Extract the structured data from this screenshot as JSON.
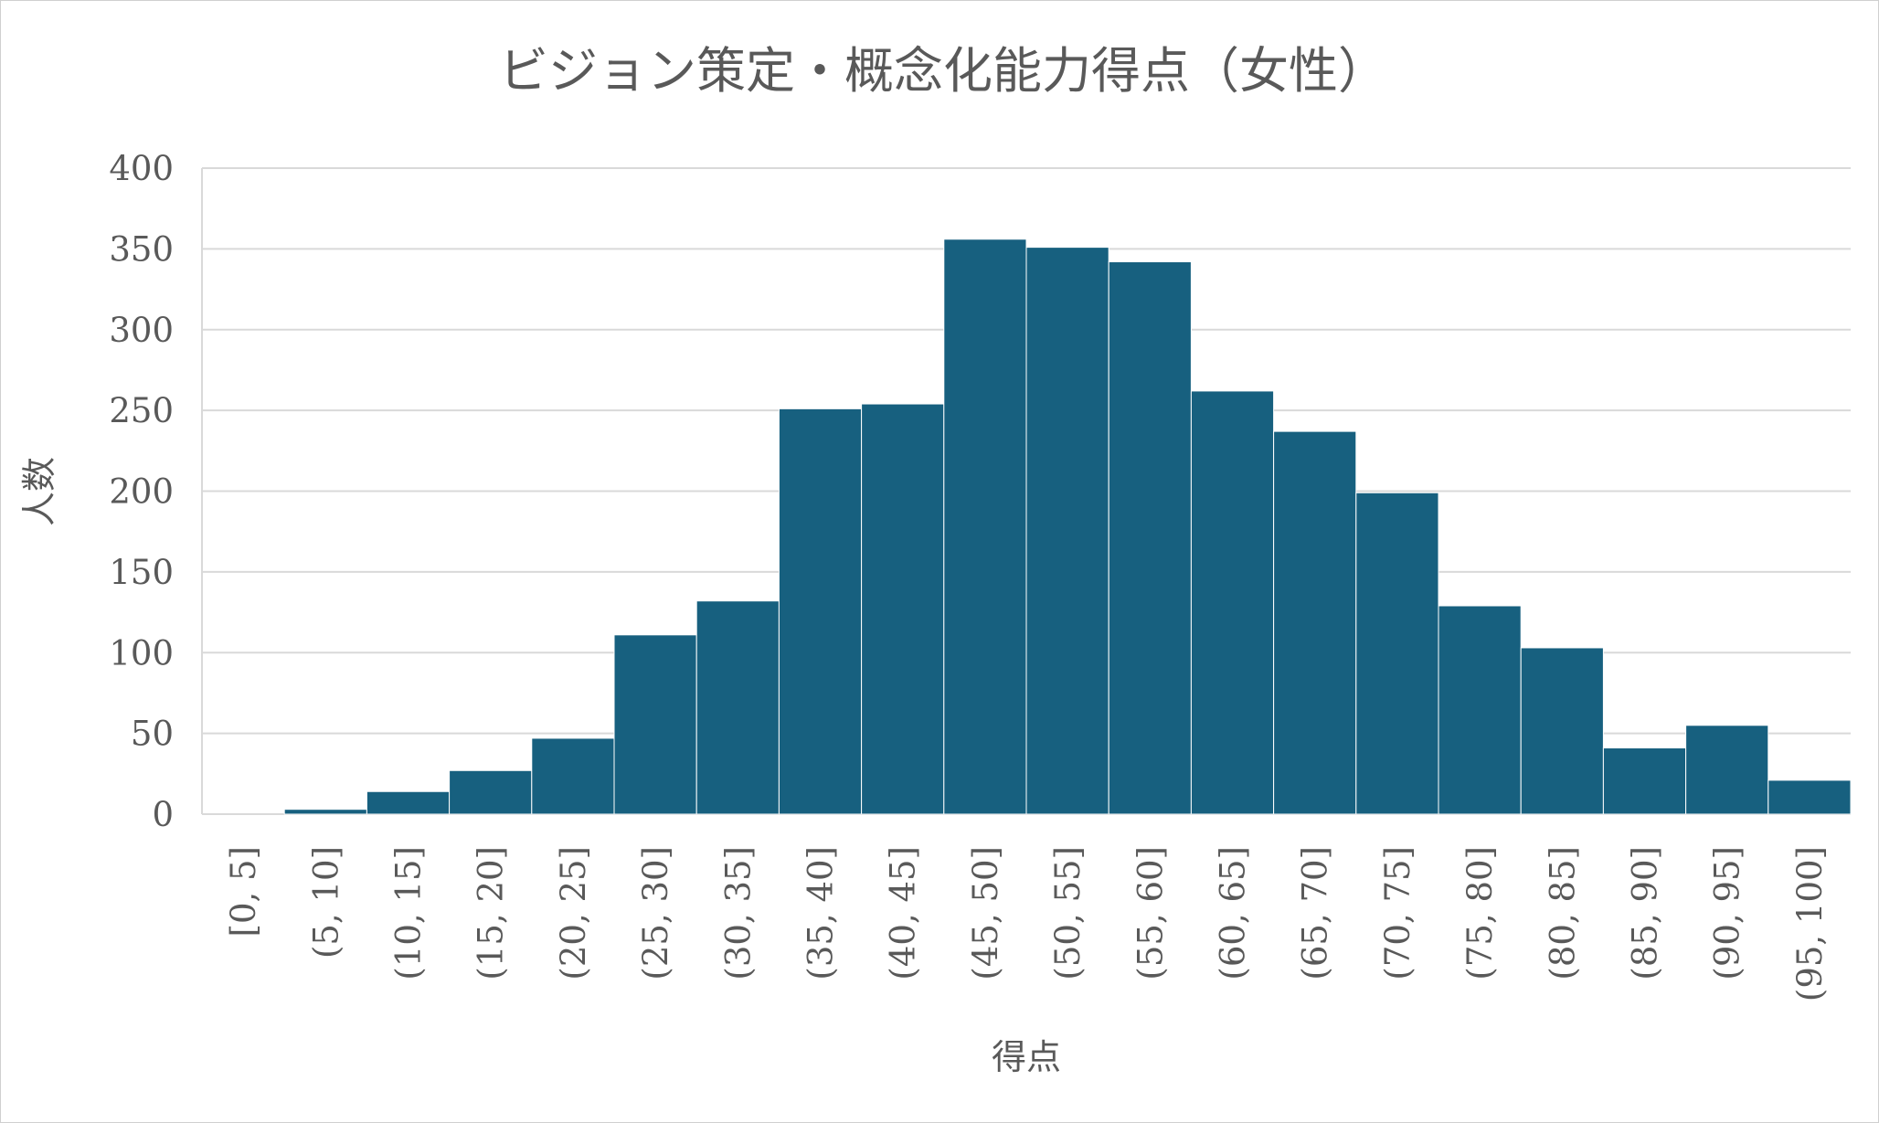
{
  "chart_data": {
    "type": "bar",
    "title": "ビジョン策定・概念化能力得点（女性）",
    "xlabel": "得点",
    "ylabel": "人数",
    "ylim": [
      0,
      400
    ],
    "yticks": [
      0,
      50,
      100,
      150,
      200,
      250,
      300,
      350,
      400
    ],
    "grid": true,
    "legend": "none",
    "bar_color": "#17607f",
    "gridline_color": "#d9d9d9",
    "categories": [
      "[0, 5]",
      "(5, 10]",
      "(10, 15]",
      "(15, 20]",
      "(20, 25]",
      "(25, 30]",
      "(30, 35]",
      "(35, 40]",
      "(40, 45]",
      "(45, 50]",
      "(50, 55]",
      "(55, 60]",
      "(60, 65]",
      "(65, 70]",
      "(70, 75]",
      "(75, 80]",
      "(80, 85]",
      "(85, 90]",
      "(90, 95]",
      "(95, 100]"
    ],
    "values": [
      0,
      3,
      14,
      27,
      47,
      111,
      132,
      251,
      254,
      356,
      351,
      342,
      262,
      237,
      199,
      129,
      103,
      41,
      55,
      21
    ]
  }
}
